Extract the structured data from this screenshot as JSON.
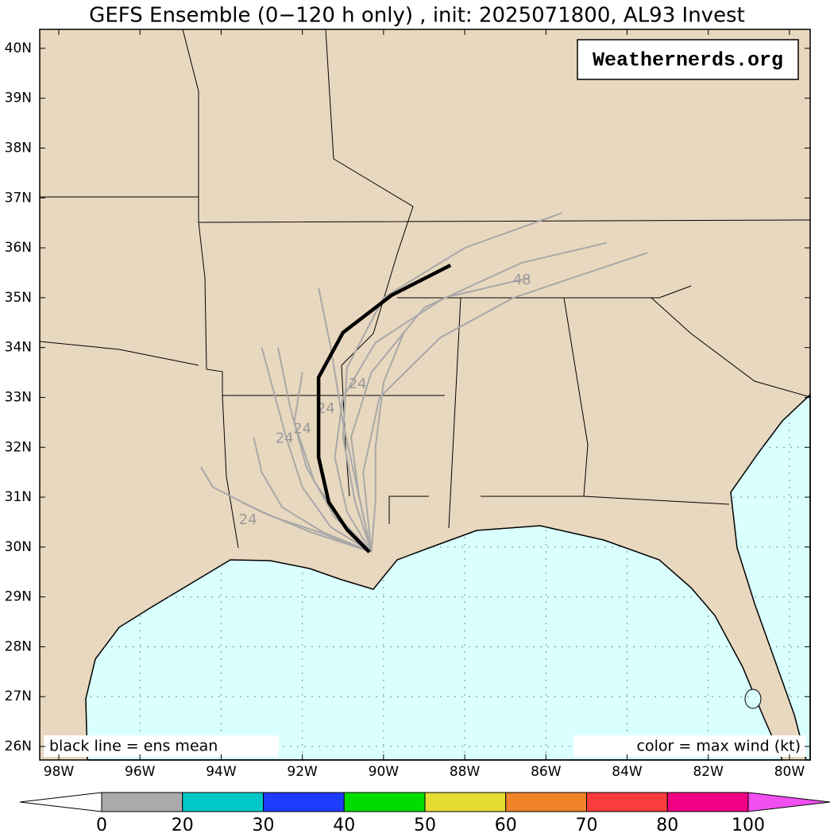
{
  "title": "GEFS Ensemble (0−120 h only) , init: 2025071800, AL93 Invest",
  "watermark": "Weathernerds.org",
  "map": {
    "lonlim": [
      -98.47,
      -79.49
    ],
    "latlim": [
      25.73,
      40.38
    ],
    "grid": true,
    "land_color": "#e8d8bf",
    "water_color": "#d9ffff",
    "lon_ticks": [
      {
        "value": -98,
        "label": "98W"
      },
      {
        "value": -96,
        "label": "96W"
      },
      {
        "value": -94,
        "label": "94W"
      },
      {
        "value": -92,
        "label": "92W"
      },
      {
        "value": -90,
        "label": "90W"
      },
      {
        "value": -88,
        "label": "88W"
      },
      {
        "value": -86,
        "label": "86W"
      },
      {
        "value": -84,
        "label": "84W"
      },
      {
        "value": -82,
        "label": "82W"
      },
      {
        "value": -80,
        "label": "80W"
      }
    ],
    "lat_ticks": [
      {
        "value": 26,
        "label": "26N"
      },
      {
        "value": 27,
        "label": "27N"
      },
      {
        "value": 28,
        "label": "28N"
      },
      {
        "value": 29,
        "label": "29N"
      },
      {
        "value": 30,
        "label": "30N"
      },
      {
        "value": 31,
        "label": "31N"
      },
      {
        "value": 32,
        "label": "32N"
      },
      {
        "value": 33,
        "label": "33N"
      },
      {
        "value": 34,
        "label": "34N"
      },
      {
        "value": 35,
        "label": "35N"
      },
      {
        "value": 36,
        "label": "36N"
      },
      {
        "value": 37,
        "label": "37N"
      },
      {
        "value": 38,
        "label": "38N"
      },
      {
        "value": 39,
        "label": "39N"
      },
      {
        "value": 40,
        "label": "40N"
      }
    ],
    "mean_track": {
      "color": "#000000",
      "lon": [
        -90.35,
        -90.9,
        -91.35,
        -91.6,
        -91.6,
        -91.6,
        -91.0,
        -89.8,
        -88.35
      ],
      "lat": [
        29.9,
        30.35,
        30.9,
        31.8,
        32.6,
        33.4,
        34.3,
        35.05,
        35.65
      ]
    },
    "members": {
      "color": "#a8a8a8",
      "tracks": [
        {
          "lon": [
            -90.3,
            -91.5,
            -92.5,
            -93.0,
            -93.2
          ],
          "lat": [
            29.9,
            30.3,
            30.8,
            31.5,
            32.2
          ]
        },
        {
          "lon": [
            -90.3,
            -91.2,
            -91.9,
            -92.3,
            -92.6
          ],
          "lat": [
            29.9,
            30.6,
            31.6,
            32.8,
            34.0
          ]
        },
        {
          "lon": [
            -90.3,
            -90.9,
            -91.2,
            -91.0,
            -90.2,
            -88.5,
            -86.4
          ],
          "lat": [
            29.9,
            30.7,
            31.8,
            33.0,
            34.1,
            35.0,
            35.4
          ]
        },
        {
          "lon": [
            -90.3,
            -90.6,
            -90.8,
            -90.3,
            -89.0,
            -86.6,
            -84.5
          ],
          "lat": [
            29.9,
            31.0,
            32.2,
            33.5,
            34.8,
            35.7,
            36.1
          ]
        },
        {
          "lon": [
            -90.3,
            -91.6,
            -92.7,
            -93.5
          ],
          "lat": [
            29.9,
            30.3,
            30.6,
            30.9
          ]
        },
        {
          "lon": [
            -90.3,
            -90.2,
            -90.2,
            -90.0,
            -89.5
          ],
          "lat": [
            29.9,
            30.9,
            32.0,
            33.3,
            34.3
          ]
        },
        {
          "lon": [
            -90.3,
            -91.0,
            -91.7,
            -92.2,
            -92.0
          ],
          "lat": [
            29.9,
            30.5,
            31.3,
            32.5,
            33.5
          ]
        },
        {
          "lon": [
            -90.3,
            -90.7,
            -91.0,
            -90.9,
            -90.0,
            -88.0,
            -85.6
          ],
          "lat": [
            29.9,
            30.9,
            32.2,
            33.6,
            35.0,
            36.0,
            36.7
          ]
        },
        {
          "lon": [
            -90.3,
            -91.3,
            -92.0,
            -92.4,
            -93.0
          ],
          "lat": [
            29.9,
            30.4,
            31.2,
            32.2,
            34.0
          ]
        },
        {
          "lon": [
            -90.3,
            -90.6,
            -91.0,
            -91.3,
            -91.6
          ],
          "lat": [
            29.9,
            31.0,
            32.5,
            34.0,
            35.2
          ]
        },
        {
          "lon": [
            -90.3,
            -90.5,
            -90.1,
            -88.6,
            -86.8,
            -83.5
          ],
          "lat": [
            29.9,
            31.5,
            33.0,
            34.2,
            35.0,
            35.9
          ]
        },
        {
          "lon": [
            -90.3,
            -91.8,
            -93.0,
            -94.2,
            -94.5
          ],
          "lat": [
            29.9,
            30.3,
            30.7,
            31.2,
            31.6
          ]
        }
      ]
    },
    "hour_labels": [
      {
        "text": "24",
        "lon": -92.0,
        "lat": 32.36
      },
      {
        "text": "24",
        "lon": -92.44,
        "lat": 32.17
      },
      {
        "text": "24",
        "lon": -91.42,
        "lat": 32.77
      },
      {
        "text": "24",
        "lon": -90.64,
        "lat": 33.26
      },
      {
        "text": "24",
        "lon": -93.34,
        "lat": 30.54
      },
      {
        "text": "48",
        "lon": -86.59,
        "lat": 35.35
      }
    ],
    "notes": {
      "left": "black line = ens mean",
      "right": "color = max wind (kt)"
    }
  },
  "colorbar": {
    "ticks": [
      0,
      20,
      30,
      40,
      50,
      60,
      70,
      80,
      100
    ],
    "colors": [
      "#aaaaaa",
      "#00c8c8",
      "#1e3cff",
      "#00dc00",
      "#e6dc32",
      "#f08228",
      "#fa3c3c",
      "#f00082"
    ],
    "extend_colors": [
      "#ffffff",
      "#f050f0"
    ]
  }
}
